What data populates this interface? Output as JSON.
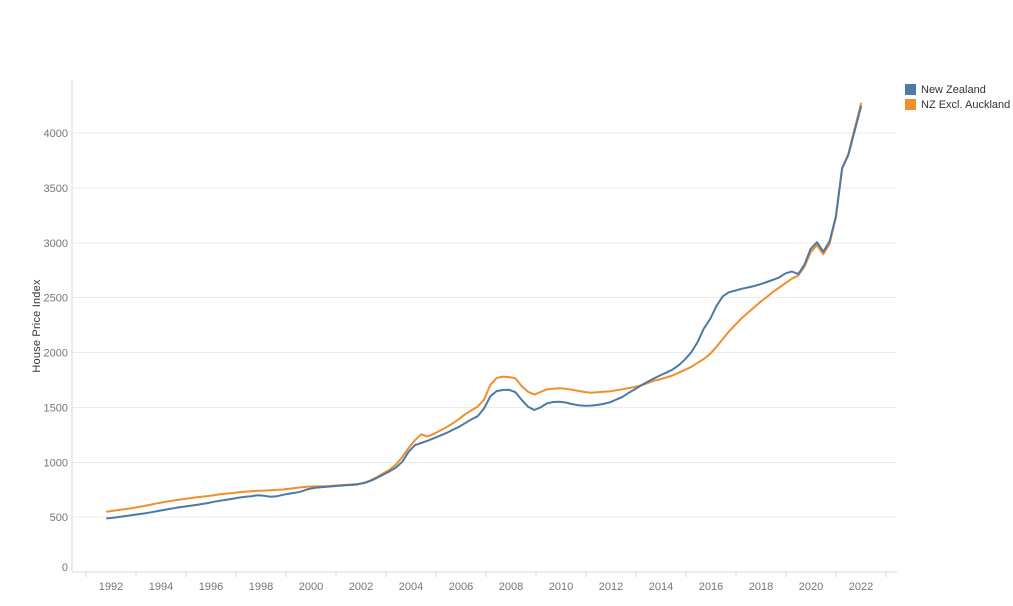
{
  "page": {
    "background": "#ffffff",
    "title": ""
  },
  "chart_data": {
    "type": "line",
    "title": "",
    "xlabel": "",
    "ylabel": "House Price Index",
    "x_start": 1992,
    "x_step": 0.25,
    "x_end": 2022,
    "x_tick_labels": [
      "1992",
      "1994",
      "1996",
      "1998",
      "2000",
      "2002",
      "2004",
      "2006",
      "2008",
      "2010",
      "2012",
      "2014",
      "2016",
      "2018",
      "2020",
      "2022"
    ],
    "y_ticks": [
      0,
      500,
      1000,
      1500,
      2000,
      2500,
      3000,
      3500,
      4000
    ],
    "ylim": [
      0,
      4480
    ],
    "xlim": [
      1990.6,
      2023.4
    ],
    "grid": "horizontal",
    "legend_position": "top-right",
    "colors": {
      "grid": "#ececec",
      "axis": "#d8d8d8",
      "tick_text": "#767676",
      "axis_title_text": "#333333"
    },
    "series": [
      {
        "name": "New Zealand",
        "color": "#4e79a7",
        "values": [
          488,
          495,
          502,
          510,
          518,
          526,
          534,
          544,
          555,
          565,
          575,
          585,
          593,
          601,
          610,
          619,
          628,
          640,
          650,
          659,
          668,
          678,
          685,
          691,
          700,
          694,
          686,
          690,
          703,
          714,
          722,
          735,
          755,
          766,
          772,
          776,
          781,
          786,
          790,
          793,
          800,
          812,
          832,
          858,
          888,
          918,
          952,
          1005,
          1095,
          1155,
          1175,
          1195,
          1218,
          1242,
          1266,
          1295,
          1322,
          1356,
          1390,
          1420,
          1490,
          1600,
          1648,
          1658,
          1660,
          1638,
          1568,
          1506,
          1476,
          1500,
          1535,
          1549,
          1552,
          1544,
          1530,
          1520,
          1514,
          1516,
          1522,
          1532,
          1545,
          1570,
          1594,
          1632,
          1664,
          1700,
          1732,
          1762,
          1790,
          1816,
          1844,
          1884,
          1938,
          2004,
          2095,
          2220,
          2305,
          2425,
          2512,
          2549,
          2564,
          2580,
          2592,
          2606,
          2622,
          2642,
          2662,
          2684,
          2722,
          2738,
          2714,
          2800,
          2945,
          3005,
          2918,
          3012,
          3242,
          3680,
          3800,
          4020,
          4240
        ]
      },
      {
        "name": "NZ Excl. Auckland",
        "color": "#f28e2b",
        "values": [
          550,
          558,
          566,
          574,
          582,
          592,
          602,
          614,
          626,
          636,
          646,
          655,
          663,
          671,
          679,
          686,
          692,
          700,
          708,
          714,
          720,
          727,
          732,
          736,
          740,
          742,
          745,
          748,
          752,
          758,
          765,
          772,
          778,
          780,
          782,
          781,
          786,
          790,
          794,
          797,
          802,
          814,
          836,
          866,
          900,
          934,
          980,
          1048,
          1130,
          1200,
          1255,
          1235,
          1258,
          1288,
          1318,
          1354,
          1392,
          1438,
          1472,
          1508,
          1570,
          1705,
          1768,
          1780,
          1776,
          1766,
          1692,
          1642,
          1616,
          1640,
          1664,
          1670,
          1675,
          1670,
          1660,
          1650,
          1640,
          1634,
          1638,
          1642,
          1646,
          1656,
          1665,
          1676,
          1686,
          1700,
          1720,
          1742,
          1756,
          1772,
          1790,
          1816,
          1842,
          1870,
          1906,
          1942,
          1988,
          2052,
          2122,
          2192,
          2252,
          2312,
          2362,
          2412,
          2462,
          2506,
          2552,
          2592,
          2632,
          2672,
          2702,
          2780,
          2915,
          2978,
          2895,
          2992,
          3232,
          3672,
          3812,
          4042,
          4268
        ]
      }
    ]
  }
}
